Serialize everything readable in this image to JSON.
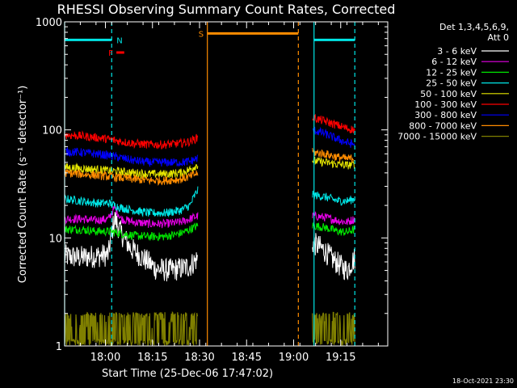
{
  "chart_data": {
    "type": "line",
    "title": "RHESSI Observing Summary Count Rates, Corrected",
    "xlabel": "Start Time (25-Dec-06 17:47:02)",
    "ylabel": "Corrected Count Rate (s⁻¹ detector⁻¹)",
    "x_start_minutes": 0,
    "x_range_minutes": [
      0,
      103
    ],
    "x_ticks": [
      {
        "t": 13,
        "label": "18:00"
      },
      {
        "t": 28,
        "label": "18:15"
      },
      {
        "t": 43,
        "label": "18:30"
      },
      {
        "t": 58,
        "label": "18:45"
      },
      {
        "t": 73,
        "label": "19:00"
      },
      {
        "t": 88,
        "label": "19:15"
      }
    ],
    "yscale": "log",
    "ylim": [
      1,
      1000
    ],
    "y_ticks": [
      {
        "v": 1,
        "label": "1"
      },
      {
        "v": 10,
        "label": "10"
      },
      {
        "v": 100,
        "label": "100"
      },
      {
        "v": 1000,
        "label": "1000"
      }
    ],
    "legend_header": [
      "Det 1,3,4,5,6,9,",
      "Att 0"
    ],
    "series": [
      {
        "name": "3 - 6 keV",
        "color": "#ffffff",
        "seg1": [
          [
            0,
            6.8
          ],
          [
            5,
            6.6
          ],
          [
            10,
            6.8
          ],
          [
            14,
            7
          ],
          [
            16,
            15
          ],
          [
            18,
            11
          ],
          [
            21,
            8
          ],
          [
            25,
            6.5
          ],
          [
            29,
            5.2
          ],
          [
            33,
            5
          ],
          [
            37,
            5.2
          ],
          [
            40,
            5.5
          ],
          [
            42.5,
            6.5
          ]
        ],
        "seg2": [
          [
            79,
            9
          ],
          [
            82,
            8
          ],
          [
            85,
            6.5
          ],
          [
            88,
            5.5
          ],
          [
            90,
            5
          ],
          [
            92.5,
            6.5
          ]
        ]
      },
      {
        "name": "6 - 12 keV",
        "color": "#e600e6",
        "seg1": [
          [
            0,
            15
          ],
          [
            5,
            15
          ],
          [
            10,
            14.5
          ],
          [
            14,
            15
          ],
          [
            16,
            19
          ],
          [
            18,
            15
          ],
          [
            22,
            14
          ],
          [
            27,
            13.5
          ],
          [
            32,
            13.5
          ],
          [
            37,
            14
          ],
          [
            40,
            15
          ],
          [
            42.5,
            16
          ]
        ],
        "seg2": [
          [
            79,
            16
          ],
          [
            83,
            15.5
          ],
          [
            87,
            14.5
          ],
          [
            90,
            14
          ],
          [
            92.5,
            15
          ]
        ]
      },
      {
        "name": "12 - 25 keV",
        "color": "#00e600",
        "seg1": [
          [
            0,
            12
          ],
          [
            5,
            12
          ],
          [
            10,
            11.5
          ],
          [
            14,
            11.5
          ],
          [
            18,
            11
          ],
          [
            22,
            10.5
          ],
          [
            27,
            10.3
          ],
          [
            32,
            10.3
          ],
          [
            37,
            11
          ],
          [
            40,
            12
          ],
          [
            42.5,
            13
          ]
        ],
        "seg2": [
          [
            79,
            13
          ],
          [
            83,
            12.5
          ],
          [
            87,
            11.5
          ],
          [
            90,
            11.3
          ],
          [
            92.5,
            12
          ]
        ]
      },
      {
        "name": "25 - 50 keV",
        "color": "#00e6e6",
        "seg1": [
          [
            0,
            23
          ],
          [
            5,
            22
          ],
          [
            10,
            21
          ],
          [
            14,
            21
          ],
          [
            18,
            19
          ],
          [
            22,
            18
          ],
          [
            27,
            17
          ],
          [
            32,
            17
          ],
          [
            37,
            18
          ],
          [
            40,
            20
          ],
          [
            42.5,
            28
          ]
        ],
        "seg2": [
          [
            79,
            25
          ],
          [
            83,
            24
          ],
          [
            87,
            22
          ],
          [
            90,
            22
          ],
          [
            92.5,
            23
          ]
        ]
      },
      {
        "name": "50 - 100 keV",
        "color": "#e6e600",
        "seg1": [
          [
            0,
            45
          ],
          [
            5,
            44
          ],
          [
            10,
            43
          ],
          [
            14,
            42
          ],
          [
            18,
            41
          ],
          [
            22,
            40
          ],
          [
            27,
            39
          ],
          [
            32,
            39
          ],
          [
            37,
            40
          ],
          [
            40,
            43
          ],
          [
            42.5,
            48
          ]
        ],
        "seg2": [
          [
            79,
            52
          ],
          [
            83,
            50
          ],
          [
            87,
            48
          ],
          [
            90,
            47
          ],
          [
            92.5,
            48
          ]
        ]
      },
      {
        "name": "100 - 300 keV",
        "color": "#ff0000",
        "seg1": [
          [
            0,
            90
          ],
          [
            5,
            88
          ],
          [
            10,
            85
          ],
          [
            14,
            82
          ],
          [
            18,
            78
          ],
          [
            22,
            75
          ],
          [
            27,
            73
          ],
          [
            32,
            73
          ],
          [
            37,
            75
          ],
          [
            40,
            78
          ],
          [
            42.5,
            85
          ]
        ],
        "seg2": [
          [
            79,
            130
          ],
          [
            83,
            120
          ],
          [
            87,
            110
          ],
          [
            90,
            103
          ],
          [
            92.5,
            100
          ]
        ]
      },
      {
        "name": "300 - 800 keV",
        "color": "#0000ff",
        "seg1": [
          [
            0,
            63
          ],
          [
            5,
            62
          ],
          [
            10,
            60
          ],
          [
            14,
            58
          ],
          [
            18,
            55
          ],
          [
            22,
            52
          ],
          [
            27,
            50
          ],
          [
            32,
            50
          ],
          [
            37,
            50
          ],
          [
            40,
            51
          ],
          [
            42.5,
            55
          ]
        ],
        "seg2": [
          [
            79,
            100
          ],
          [
            83,
            92
          ],
          [
            87,
            82
          ],
          [
            90,
            76
          ],
          [
            92.5,
            73
          ]
        ]
      },
      {
        "name": "800 - 7000 keV",
        "color": "#ff8c00",
        "seg1": [
          [
            0,
            40
          ],
          [
            5,
            39
          ],
          [
            10,
            38
          ],
          [
            14,
            37
          ],
          [
            18,
            36
          ],
          [
            22,
            35
          ],
          [
            27,
            34
          ],
          [
            32,
            34
          ],
          [
            37,
            35
          ],
          [
            40,
            37
          ],
          [
            42.5,
            40
          ]
        ],
        "seg2": [
          [
            79,
            62
          ],
          [
            83,
            60
          ],
          [
            87,
            56
          ],
          [
            90,
            54
          ],
          [
            92.5,
            55
          ]
        ]
      },
      {
        "name": "7000 - 15000 keV",
        "color": "#808000",
        "seg1": [
          [
            0,
            1.5
          ],
          [
            10,
            1.5
          ],
          [
            20,
            1.5
          ],
          [
            30,
            1.5
          ],
          [
            42.5,
            1.5
          ]
        ],
        "seg2": [
          [
            79,
            1.5
          ],
          [
            86,
            1.5
          ],
          [
            92.5,
            1.5
          ]
        ]
      }
    ],
    "intervals": [
      {
        "label": "",
        "color": "#00e6e6",
        "y": 680,
        "t0": 0,
        "t1": 15
      },
      {
        "label": "N",
        "color": "#00e6e6",
        "y": 680,
        "t0": 15,
        "t1": 15
      },
      {
        "label": "F",
        "color": "#ff0000",
        "y": 520,
        "t0": 16.5,
        "t1": 19
      },
      {
        "label": "S",
        "color": "#ff8c00",
        "y": 780,
        "t0": 45.5,
        "t1": 74.5
      },
      {
        "label": "",
        "color": "#00e6e6",
        "y": 680,
        "t0": 79.5,
        "t1": 92.5
      }
    ],
    "vlines": [
      {
        "t": 0,
        "color": "#00e6e6",
        "style": "solid"
      },
      {
        "t": 15,
        "color": "#00e6e6",
        "style": "dashed"
      },
      {
        "t": 45.5,
        "color": "#ff8c00",
        "style": "solid"
      },
      {
        "t": 74.5,
        "color": "#ff8c00",
        "style": "dashed"
      },
      {
        "t": 79.5,
        "color": "#00e6e6",
        "style": "solid"
      },
      {
        "t": 92.5,
        "color": "#00e6e6",
        "style": "dashed"
      }
    ]
  },
  "footer": "18-Oct-2021 23:30"
}
